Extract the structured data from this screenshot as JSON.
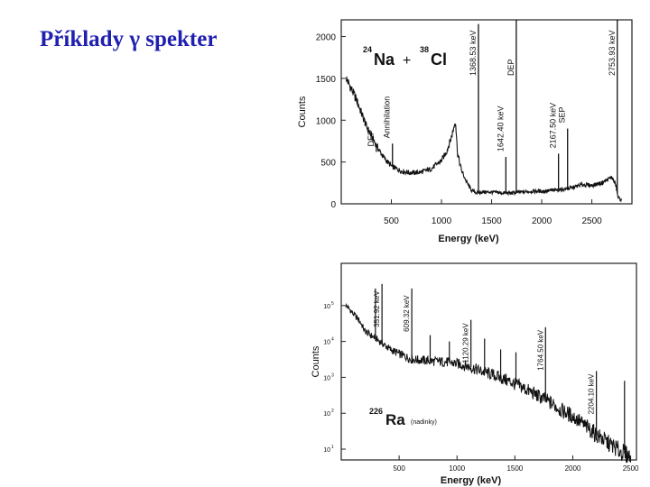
{
  "slide": {
    "title": "Příklady γ spekter"
  },
  "chart_data": [
    {
      "type": "line",
      "title_parts": {
        "mass1": "24",
        "el1": "Na",
        "plus": "+",
        "mass2": "38",
        "el2": "Cl"
      },
      "xlabel": "Energy (keV)",
      "ylabel": "Counts",
      "xlim": [
        0,
        2900
      ],
      "ylim": [
        0,
        2200
      ],
      "x_ticks": [
        500,
        1000,
        1500,
        2000,
        2500
      ],
      "y_ticks": [
        0,
        500,
        1000,
        1500,
        2000
      ],
      "grid": false,
      "series": [
        {
          "x": [
            50,
            150,
            250,
            350,
            420,
            500,
            600,
            700,
            800,
            900,
            1000,
            1050,
            1100,
            1140,
            1160,
            1200,
            1250,
            1300,
            1360,
            1400,
            1500,
            1600,
            1700,
            1800,
            1900,
            2000,
            2100,
            2200,
            2300,
            2400,
            2500,
            2600,
            2700,
            2740,
            2760,
            2800
          ],
          "y": [
            1500,
            1250,
            930,
            700,
            560,
            450,
            390,
            370,
            380,
            420,
            520,
            620,
            800,
            1000,
            600,
            400,
            260,
            160,
            130,
            140,
            140,
            130,
            130,
            140,
            150,
            150,
            160,
            170,
            190,
            230,
            220,
            250,
            320,
            220,
            80,
            40
          ]
        }
      ],
      "peaks": [
        {
          "x": 350,
          "y": 620,
          "label": "DEP"
        },
        {
          "x": 511,
          "y": 720,
          "label": "Annihilation"
        },
        {
          "x": 1368.53,
          "y": 2150,
          "label": "1368.53 keV"
        },
        {
          "x": 1642.4,
          "y": 560,
          "label": "1642.40 keV"
        },
        {
          "x": 1746,
          "y": 2200,
          "label": "DEP"
        },
        {
          "x": 2167.5,
          "y": 600,
          "label": "2167.50 keV"
        },
        {
          "x": 2258,
          "y": 900,
          "label": "SEP"
        },
        {
          "x": 2753.93,
          "y": 2200,
          "label": "2753.93 keV"
        }
      ]
    },
    {
      "type": "line",
      "title_parts": {
        "mass": "226",
        "el": "Ra",
        "note": "(nadinky)"
      },
      "xlabel": "Energy (keV)",
      "ylabel": "Counts",
      "xlim": [
        0,
        2550
      ],
      "ylim": [
        5,
        1500000
      ],
      "yscale": "log",
      "x_ticks": [
        500,
        1000,
        1500,
        2000,
        2500
      ],
      "y_ticks": [
        {
          "value": 10,
          "base": "10",
          "exp": "1"
        },
        {
          "value": 100,
          "base": "10",
          "exp": "2"
        },
        {
          "value": 1000,
          "base": "10",
          "exp": "3"
        },
        {
          "value": 10000,
          "base": "10",
          "exp": "4"
        },
        {
          "value": 100000,
          "base": "10",
          "exp": "5"
        }
      ],
      "grid": false,
      "series": [
        {
          "x": [
            40,
            100,
            200,
            250,
            300,
            350,
            420,
            500,
            600,
            700,
            800,
            900,
            1000,
            1100,
            1200,
            1300,
            1400,
            1500,
            1600,
            1700,
            1800,
            1900,
            2000,
            2100,
            2200,
            2300,
            2400,
            2500
          ],
          "y": [
            100000,
            60000,
            20000,
            15000,
            12000,
            9000,
            6000,
            4500,
            3200,
            3000,
            2800,
            2700,
            2400,
            2000,
            1500,
            1200,
            900,
            650,
            450,
            300,
            200,
            120,
            80,
            45,
            25,
            15,
            9,
            6
          ]
        }
      ],
      "peaks": [
        {
          "x": 295,
          "y": 300000
        },
        {
          "x": 351.92,
          "y": 400000,
          "label": "351.92 keV"
        },
        {
          "x": 609.32,
          "y": 300000,
          "label": "609.32 keV"
        },
        {
          "x": 768,
          "y": 15000
        },
        {
          "x": 934,
          "y": 10000
        },
        {
          "x": 1120.29,
          "y": 40000,
          "label": "1120.29 keV"
        },
        {
          "x": 1238,
          "y": 12000
        },
        {
          "x": 1377,
          "y": 6000
        },
        {
          "x": 1509,
          "y": 5000
        },
        {
          "x": 1764.5,
          "y": 25000,
          "label": "1764.50 keV"
        },
        {
          "x": 2204.1,
          "y": 1500,
          "label": "2204.10 keV"
        },
        {
          "x": 2447,
          "y": 800
        }
      ]
    }
  ]
}
